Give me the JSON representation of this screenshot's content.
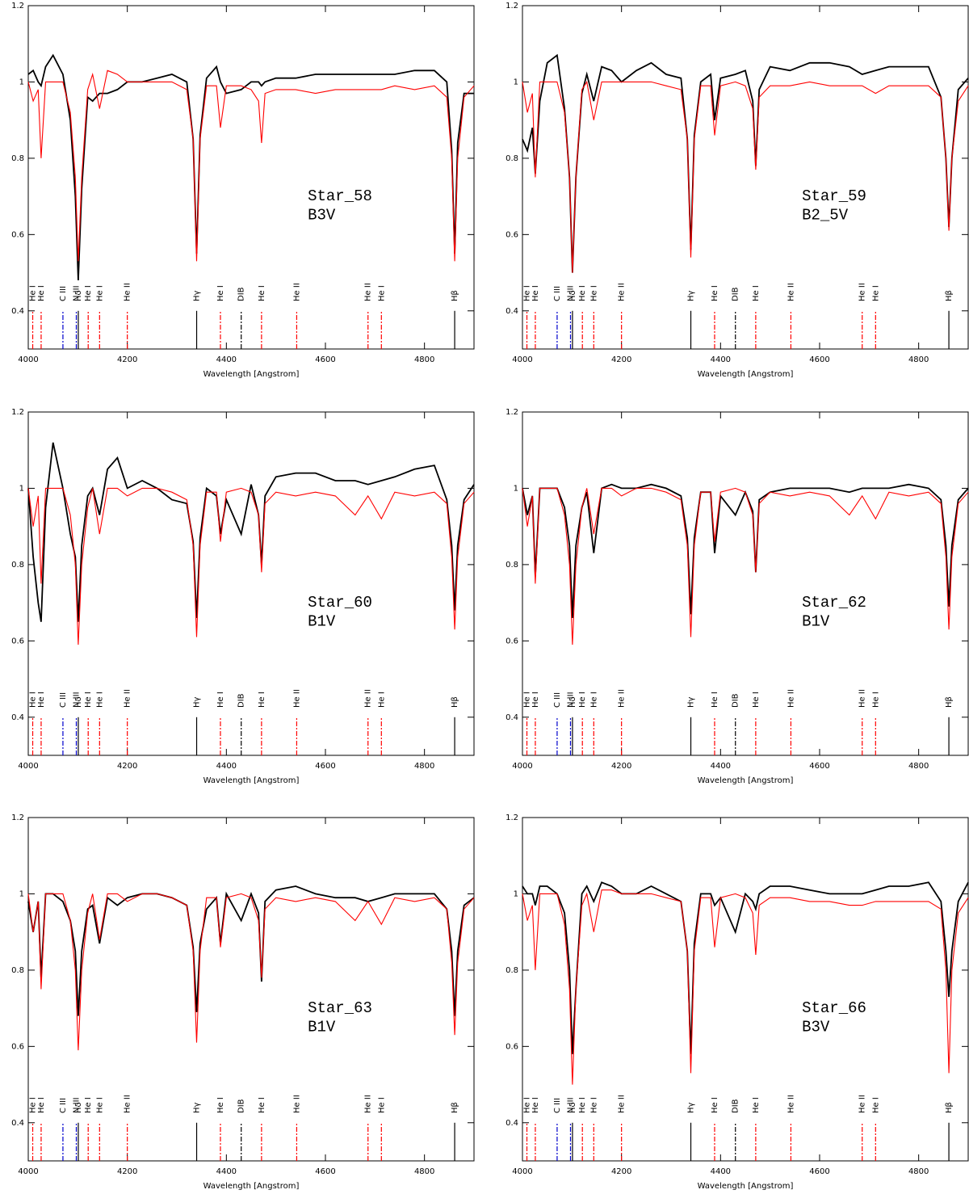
{
  "line_markers": [
    {
      "label": "He I",
      "x": 4009,
      "color": "#ff0000",
      "dashed": true
    },
    {
      "label": "He I",
      "x": 4026,
      "color": "#ff0000",
      "dashed": true
    },
    {
      "label": "C III",
      "x": 4070,
      "color": "#0000cc",
      "dashed": true
    },
    {
      "label": "N III",
      "x": 4097,
      "color": "#0000cc",
      "dashed": true
    },
    {
      "label": "Hδ",
      "x": 4101,
      "color": "#000000",
      "dashed": false
    },
    {
      "label": "He I",
      "x": 4121,
      "color": "#ff0000",
      "dashed": true
    },
    {
      "label": "He I",
      "x": 4144,
      "color": "#ff0000",
      "dashed": true
    },
    {
      "label": "He II",
      "x": 4200,
      "color": "#ff0000",
      "dashed": true
    },
    {
      "label": "Hγ",
      "x": 4340,
      "color": "#000000",
      "dashed": false
    },
    {
      "label": "He I",
      "x": 4388,
      "color": "#ff0000",
      "dashed": true
    },
    {
      "label": "DIB",
      "x": 4430,
      "color": "#000000",
      "dashed": true
    },
    {
      "label": "He I",
      "x": 4471,
      "color": "#ff0000",
      "dashed": true
    },
    {
      "label": "He II",
      "x": 4542,
      "color": "#ff0000",
      "dashed": true
    },
    {
      "label": "He II",
      "x": 4686,
      "color": "#ff0000",
      "dashed": true
    },
    {
      "label": "He I",
      "x": 4713,
      "color": "#ff0000",
      "dashed": true
    },
    {
      "label": "Hβ",
      "x": 4861,
      "color": "#000000",
      "dashed": false
    }
  ],
  "chart_data": [
    {
      "type": "line",
      "title": "Star_58",
      "subtitle": "B3V",
      "x_label": "Wavelength [Angstrom]",
      "xlim": [
        4000,
        4900
      ],
      "xticks": [
        4000,
        4200,
        4400,
        4600,
        4800
      ],
      "ylim": [
        0.3,
        1.2
      ],
      "yticks": [
        0.4,
        0.6,
        0.8,
        1,
        1.2
      ],
      "x": [
        4000,
        4010,
        4020,
        4026,
        4035,
        4050,
        4070,
        4085,
        4095,
        4101,
        4108,
        4120,
        4130,
        4144,
        4160,
        4180,
        4200,
        4230,
        4260,
        4290,
        4320,
        4333,
        4340,
        4347,
        4360,
        4380,
        4388,
        4400,
        4430,
        4450,
        4465,
        4471,
        4478,
        4500,
        4540,
        4580,
        4620,
        4660,
        4686,
        4713,
        4740,
        4780,
        4820,
        4845,
        4855,
        4861,
        4867,
        4880,
        4900
      ],
      "series": [
        {
          "color": "#000000",
          "values": [
            1.02,
            1.03,
            1.0,
            0.99,
            1.04,
            1.07,
            1.02,
            0.9,
            0.7,
            0.48,
            0.72,
            0.96,
            0.95,
            0.97,
            0.97,
            0.98,
            1.0,
            1.0,
            1.01,
            1.02,
            1.0,
            0.85,
            0.55,
            0.86,
            1.01,
            1.04,
            1.0,
            0.97,
            0.98,
            1.0,
            1.0,
            0.99,
            1.0,
            1.01,
            1.01,
            1.02,
            1.02,
            1.02,
            1.02,
            1.02,
            1.02,
            1.03,
            1.03,
            1.0,
            0.82,
            0.55,
            0.84,
            0.97,
            0.97
          ]
        },
        {
          "color": "#ff0000",
          "values": [
            1.0,
            0.95,
            0.98,
            0.8,
            1.0,
            1.0,
            1.0,
            0.92,
            0.75,
            0.53,
            0.75,
            0.98,
            1.02,
            0.93,
            1.03,
            1.02,
            1.0,
            1.0,
            1.0,
            1.0,
            0.98,
            0.85,
            0.53,
            0.85,
            0.99,
            0.99,
            0.88,
            0.99,
            0.99,
            0.98,
            0.95,
            0.84,
            0.97,
            0.98,
            0.98,
            0.97,
            0.98,
            0.98,
            0.98,
            0.98,
            0.99,
            0.98,
            0.99,
            0.96,
            0.8,
            0.53,
            0.8,
            0.96,
            0.99
          ]
        }
      ]
    },
    {
      "type": "line",
      "title": "Star_59",
      "subtitle": "B2_5V",
      "x_label": "Wavelength [Angstrom]",
      "xlim": [
        4000,
        4900
      ],
      "xticks": [
        4000,
        4200,
        4400,
        4600,
        4800
      ],
      "ylim": [
        0.3,
        1.2
      ],
      "yticks": [
        0.4,
        0.6,
        0.8,
        1,
        1.2
      ],
      "x": [
        4000,
        4010,
        4020,
        4026,
        4035,
        4050,
        4070,
        4085,
        4095,
        4101,
        4108,
        4120,
        4130,
        4144,
        4160,
        4180,
        4200,
        4230,
        4260,
        4290,
        4320,
        4333,
        4340,
        4347,
        4360,
        4380,
        4388,
        4400,
        4430,
        4450,
        4465,
        4471,
        4478,
        4500,
        4540,
        4580,
        4620,
        4660,
        4686,
        4713,
        4740,
        4780,
        4820,
        4845,
        4855,
        4861,
        4867,
        4880,
        4900
      ],
      "series": [
        {
          "color": "#000000",
          "values": [
            0.85,
            0.82,
            0.88,
            0.76,
            0.95,
            1.05,
            1.07,
            0.93,
            0.75,
            0.5,
            0.75,
            0.97,
            1.02,
            0.95,
            1.04,
            1.03,
            1.0,
            1.03,
            1.05,
            1.02,
            1.01,
            0.85,
            0.56,
            0.86,
            1.0,
            1.02,
            0.9,
            1.01,
            1.02,
            1.03,
            0.95,
            0.78,
            0.98,
            1.04,
            1.03,
            1.05,
            1.05,
            1.04,
            1.02,
            1.03,
            1.04,
            1.04,
            1.04,
            0.96,
            0.8,
            0.62,
            0.8,
            0.98,
            1.01
          ]
        },
        {
          "color": "#ff0000",
          "values": [
            1.0,
            0.92,
            0.97,
            0.75,
            1.0,
            1.0,
            1.0,
            0.92,
            0.75,
            0.5,
            0.75,
            0.98,
            1.0,
            0.9,
            1.0,
            1.0,
            1.0,
            1.0,
            1.0,
            0.99,
            0.98,
            0.85,
            0.54,
            0.85,
            0.99,
            0.99,
            0.86,
            0.99,
            1.0,
            0.99,
            0.93,
            0.77,
            0.96,
            0.99,
            0.99,
            1.0,
            0.99,
            0.99,
            0.99,
            0.97,
            0.99,
            0.99,
            0.99,
            0.96,
            0.8,
            0.61,
            0.8,
            0.95,
            0.99
          ]
        }
      ]
    },
    {
      "type": "line",
      "title": "Star_60",
      "subtitle": "B1V",
      "x_label": "Wavelength [Angstrom]",
      "xlim": [
        4000,
        4900
      ],
      "xticks": [
        4000,
        4200,
        4400,
        4600,
        4800
      ],
      "ylim": [
        0.3,
        1.2
      ],
      "yticks": [
        0.4,
        0.6,
        0.8,
        1,
        1.2
      ],
      "x": [
        4000,
        4010,
        4020,
        4026,
        4035,
        4050,
        4070,
        4085,
        4095,
        4101,
        4108,
        4120,
        4130,
        4144,
        4160,
        4180,
        4200,
        4230,
        4260,
        4290,
        4320,
        4333,
        4340,
        4347,
        4360,
        4380,
        4388,
        4400,
        4430,
        4450,
        4465,
        4471,
        4478,
        4500,
        4540,
        4580,
        4620,
        4660,
        4686,
        4713,
        4740,
        4780,
        4820,
        4845,
        4855,
        4861,
        4867,
        4880,
        4900
      ],
      "series": [
        {
          "color": "#000000",
          "values": [
            1.0,
            0.82,
            0.7,
            0.65,
            0.95,
            1.12,
            1.0,
            0.88,
            0.82,
            0.65,
            0.85,
            0.98,
            1.0,
            0.93,
            1.05,
            1.08,
            1.0,
            1.02,
            1.0,
            0.97,
            0.96,
            0.86,
            0.66,
            0.87,
            1.0,
            0.98,
            0.88,
            0.97,
            0.88,
            1.01,
            0.93,
            0.8,
            0.98,
            1.03,
            1.04,
            1.04,
            1.02,
            1.02,
            1.01,
            1.02,
            1.03,
            1.05,
            1.06,
            0.97,
            0.85,
            0.68,
            0.85,
            0.97,
            1.01
          ]
        },
        {
          "color": "#ff0000",
          "values": [
            1.0,
            0.9,
            0.98,
            0.75,
            1.0,
            1.0,
            1.0,
            0.93,
            0.8,
            0.59,
            0.8,
            0.95,
            1.0,
            0.88,
            1.0,
            1.0,
            0.98,
            1.0,
            1.0,
            0.99,
            0.97,
            0.85,
            0.61,
            0.85,
            0.99,
            0.99,
            0.86,
            0.99,
            1.0,
            0.99,
            0.93,
            0.78,
            0.96,
            0.99,
            0.98,
            0.99,
            0.98,
            0.93,
            0.98,
            0.92,
            0.99,
            0.98,
            0.99,
            0.96,
            0.82,
            0.63,
            0.82,
            0.96,
            0.99
          ]
        }
      ]
    },
    {
      "type": "line",
      "title": "Star_62",
      "subtitle": "B1V",
      "x_label": "Wavelength [Angstrom]",
      "xlim": [
        4000,
        4900
      ],
      "xticks": [
        4000,
        4200,
        4400,
        4600,
        4800
      ],
      "ylim": [
        0.3,
        1.2
      ],
      "yticks": [
        0.4,
        0.6,
        0.8,
        1,
        1.2
      ],
      "x": [
        4000,
        4010,
        4020,
        4026,
        4035,
        4050,
        4070,
        4085,
        4095,
        4101,
        4108,
        4120,
        4130,
        4144,
        4160,
        4180,
        4200,
        4230,
        4260,
        4290,
        4320,
        4333,
        4340,
        4347,
        4360,
        4380,
        4388,
        4400,
        4430,
        4450,
        4465,
        4471,
        4478,
        4500,
        4540,
        4580,
        4620,
        4660,
        4686,
        4713,
        4740,
        4780,
        4820,
        4845,
        4855,
        4861,
        4867,
        4880,
        4900
      ],
      "series": [
        {
          "color": "#000000",
          "values": [
            1.0,
            0.93,
            0.98,
            0.77,
            1.0,
            1.0,
            1.0,
            0.95,
            0.85,
            0.66,
            0.85,
            0.95,
            0.99,
            0.83,
            1.0,
            1.01,
            1.0,
            1.0,
            1.01,
            1.0,
            0.98,
            0.87,
            0.67,
            0.87,
            0.99,
            0.99,
            0.83,
            0.98,
            0.93,
            0.99,
            0.94,
            0.78,
            0.97,
            0.99,
            1.0,
            1.0,
            1.0,
            0.99,
            1.0,
            1.0,
            1.0,
            1.01,
            1.0,
            0.97,
            0.85,
            0.69,
            0.85,
            0.97,
            1.0
          ]
        },
        {
          "color": "#ff0000",
          "values": [
            1.0,
            0.9,
            0.98,
            0.75,
            1.0,
            1.0,
            1.0,
            0.93,
            0.8,
            0.59,
            0.8,
            0.95,
            1.0,
            0.88,
            1.0,
            1.0,
            0.98,
            1.0,
            1.0,
            0.99,
            0.97,
            0.85,
            0.61,
            0.85,
            0.99,
            0.99,
            0.86,
            0.99,
            1.0,
            0.99,
            0.93,
            0.78,
            0.96,
            0.99,
            0.98,
            0.99,
            0.98,
            0.93,
            0.98,
            0.92,
            0.99,
            0.98,
            0.99,
            0.96,
            0.82,
            0.63,
            0.82,
            0.96,
            0.99
          ]
        }
      ]
    },
    {
      "type": "line",
      "title": "Star_63",
      "subtitle": "B1V",
      "x_label": "Wavelength [Angstrom]",
      "xlim": [
        4000,
        4900
      ],
      "xticks": [
        4000,
        4200,
        4400,
        4600,
        4800
      ],
      "ylim": [
        0.3,
        1.2
      ],
      "yticks": [
        0.4,
        0.6,
        0.8,
        1,
        1.2
      ],
      "x": [
        4000,
        4010,
        4020,
        4026,
        4035,
        4050,
        4070,
        4085,
        4095,
        4101,
        4108,
        4120,
        4130,
        4144,
        4160,
        4180,
        4200,
        4230,
        4260,
        4290,
        4320,
        4333,
        4340,
        4347,
        4360,
        4380,
        4388,
        4400,
        4430,
        4450,
        4465,
        4471,
        4478,
        4500,
        4540,
        4580,
        4620,
        4660,
        4686,
        4713,
        4740,
        4780,
        4820,
        4845,
        4855,
        4861,
        4867,
        4880,
        4900
      ],
      "series": [
        {
          "color": "#000000",
          "values": [
            0.98,
            0.9,
            0.98,
            0.78,
            1.0,
            1.0,
            0.98,
            0.93,
            0.85,
            0.68,
            0.85,
            0.96,
            0.97,
            0.87,
            0.99,
            0.97,
            0.99,
            1.0,
            1.0,
            0.99,
            0.97,
            0.86,
            0.69,
            0.87,
            0.96,
            0.99,
            0.87,
            1.0,
            0.93,
            1.0,
            0.95,
            0.77,
            0.98,
            1.01,
            1.02,
            1.0,
            0.99,
            0.99,
            0.98,
            0.99,
            1.0,
            1.0,
            1.0,
            0.96,
            0.85,
            0.68,
            0.85,
            0.97,
            0.99
          ]
        },
        {
          "color": "#ff0000",
          "values": [
            1.0,
            0.9,
            0.98,
            0.75,
            1.0,
            1.0,
            1.0,
            0.93,
            0.8,
            0.59,
            0.8,
            0.95,
            1.0,
            0.88,
            1.0,
            1.0,
            0.98,
            1.0,
            1.0,
            0.99,
            0.97,
            0.85,
            0.61,
            0.85,
            0.99,
            0.99,
            0.86,
            0.99,
            1.0,
            0.99,
            0.93,
            0.78,
            0.96,
            0.99,
            0.98,
            0.99,
            0.98,
            0.93,
            0.98,
            0.92,
            0.99,
            0.98,
            0.99,
            0.96,
            0.82,
            0.63,
            0.82,
            0.96,
            0.99
          ]
        }
      ]
    },
    {
      "type": "line",
      "title": "Star_66",
      "subtitle": "B3V",
      "x_label": "Wavelength [Angstrom]",
      "xlim": [
        4000,
        4900
      ],
      "xticks": [
        4000,
        4200,
        4400,
        4600,
        4800
      ],
      "ylim": [
        0.3,
        1.2
      ],
      "yticks": [
        0.4,
        0.6,
        0.8,
        1,
        1.2
      ],
      "x": [
        4000,
        4010,
        4020,
        4026,
        4035,
        4050,
        4070,
        4085,
        4095,
        4101,
        4108,
        4120,
        4130,
        4144,
        4160,
        4180,
        4200,
        4230,
        4260,
        4290,
        4320,
        4333,
        4340,
        4347,
        4360,
        4380,
        4388,
        4400,
        4430,
        4450,
        4465,
        4471,
        4478,
        4500,
        4540,
        4580,
        4620,
        4660,
        4686,
        4713,
        4740,
        4780,
        4820,
        4845,
        4855,
        4861,
        4867,
        4880,
        4900
      ],
      "series": [
        {
          "color": "#000000",
          "values": [
            1.02,
            1.0,
            1.0,
            0.97,
            1.02,
            1.02,
            1.0,
            0.95,
            0.8,
            0.58,
            0.75,
            1.0,
            1.02,
            0.98,
            1.03,
            1.02,
            1.0,
            1.0,
            1.02,
            1.0,
            0.98,
            0.85,
            0.58,
            0.87,
            1.0,
            1.0,
            0.97,
            0.99,
            0.9,
            1.0,
            0.98,
            0.96,
            1.0,
            1.02,
            1.02,
            1.01,
            1.0,
            1.0,
            1.0,
            1.01,
            1.02,
            1.02,
            1.03,
            0.98,
            0.85,
            0.73,
            0.85,
            0.98,
            1.03
          ]
        },
        {
          "color": "#ff0000",
          "values": [
            1.0,
            0.93,
            0.97,
            0.8,
            1.0,
            1.0,
            1.0,
            0.92,
            0.75,
            0.5,
            0.75,
            0.97,
            1.0,
            0.9,
            1.01,
            1.01,
            1.0,
            1.0,
            1.0,
            0.99,
            0.98,
            0.85,
            0.53,
            0.85,
            0.99,
            0.99,
            0.86,
            0.99,
            1.0,
            0.99,
            0.95,
            0.84,
            0.97,
            0.99,
            0.99,
            0.98,
            0.98,
            0.97,
            0.97,
            0.98,
            0.98,
            0.98,
            0.98,
            0.96,
            0.8,
            0.53,
            0.8,
            0.95,
            0.99
          ]
        }
      ]
    }
  ]
}
